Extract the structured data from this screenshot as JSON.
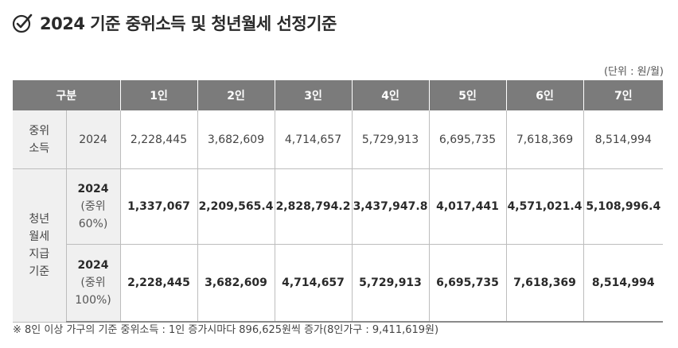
{
  "title": "2024 기준 중위소득 및 청년월세 선정기준",
  "unit": "(단위 : 원/월)",
  "header": {
    "category": "구분",
    "cols": [
      "1인",
      "2인",
      "3인",
      "4인",
      "5인",
      "6인",
      "7인"
    ]
  },
  "rows": {
    "income": {
      "category_line1": "중위",
      "category_line2": "소득",
      "year": "2024",
      "values": [
        "2,228,445",
        "3,682,609",
        "4,714,657",
        "5,729,913",
        "6,695,735",
        "7,618,369",
        "8,514,994"
      ]
    },
    "rent": {
      "category_lines": [
        "청년",
        "월세",
        "지급",
        "기준"
      ],
      "r60": {
        "year": "2024",
        "sub1": "(중위",
        "sub2": "60%)",
        "values": [
          "1,337,067",
          "2,209,565.4",
          "2,828,794.2",
          "3,437,947.8",
          "4,017,441",
          "4,571,021.4",
          "5,108,996.4"
        ]
      },
      "r100": {
        "year": "2024",
        "sub1": "(중위",
        "sub2": "100%)",
        "values": [
          "2,228,445",
          "3,682,609",
          "4,714,657",
          "5,729,913",
          "6,695,735",
          "7,618,369",
          "8,514,994"
        ]
      }
    }
  },
  "note": "※ 8인 이상 가구의 기준 중위소득 : 1인 증가시마다 896,625원씩 증가(8인가구 : 9,411,619원)"
}
